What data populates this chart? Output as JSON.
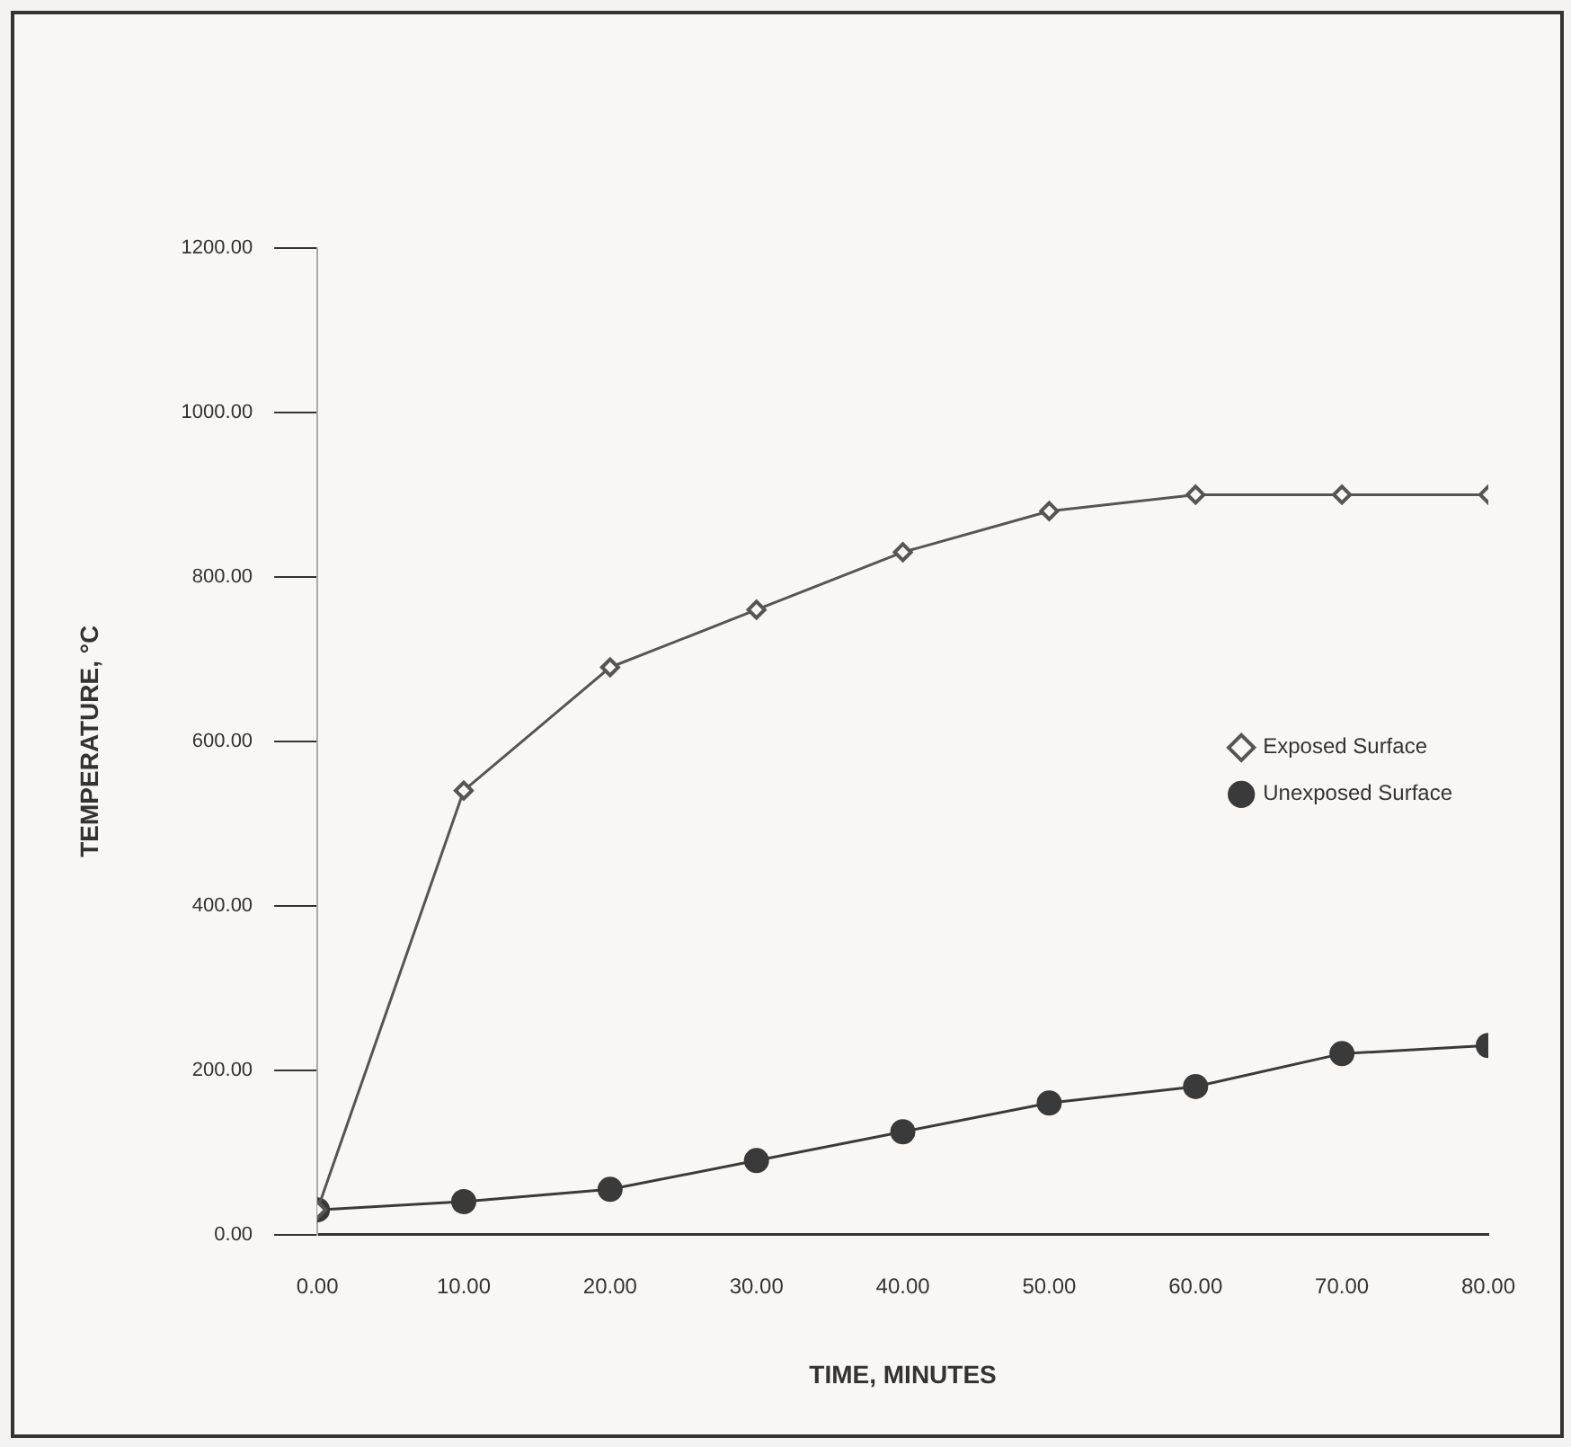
{
  "chart_data": {
    "type": "line",
    "xlabel": "TIME, MINUTES",
    "ylabel": "TEMPERATURE, °C",
    "x": [
      0,
      10,
      20,
      30,
      40,
      50,
      60,
      70,
      80
    ],
    "series": [
      {
        "name": "Exposed Surface",
        "color": "#555555",
        "marker": "diamond",
        "values": [
          30,
          540,
          690,
          760,
          830,
          880,
          900,
          900,
          900
        ]
      },
      {
        "name": "Unexposed Surface",
        "color": "#3a3a3a",
        "marker": "circle",
        "values": [
          30,
          40,
          55,
          90,
          125,
          160,
          180,
          220,
          230
        ]
      }
    ],
    "xlim": [
      0,
      80
    ],
    "xticks": [
      {
        "value": 0,
        "label": "0.00"
      },
      {
        "value": 10,
        "label": "10.00"
      },
      {
        "value": 20,
        "label": "20.00"
      },
      {
        "value": 30,
        "label": "30.00"
      },
      {
        "value": 40,
        "label": "40.00"
      },
      {
        "value": 50,
        "label": "50.00"
      },
      {
        "value": 60,
        "label": "60.00"
      },
      {
        "value": 70,
        "label": "70.00"
      },
      {
        "value": 80,
        "label": "80.00"
      }
    ],
    "ylim": [
      0,
      1200
    ],
    "yticks": [
      {
        "value": 0,
        "label": "0.00"
      },
      {
        "value": 200,
        "label": "200.00"
      },
      {
        "value": 400,
        "label": "400.00"
      },
      {
        "value": 600,
        "label": "600.00"
      },
      {
        "value": 800,
        "label": "800.00"
      },
      {
        "value": 1000,
        "label": "1000.00"
      },
      {
        "value": 1200,
        "label": "1200.00"
      }
    ],
    "grid": false,
    "legend": "right",
    "line_style": "solid"
  }
}
